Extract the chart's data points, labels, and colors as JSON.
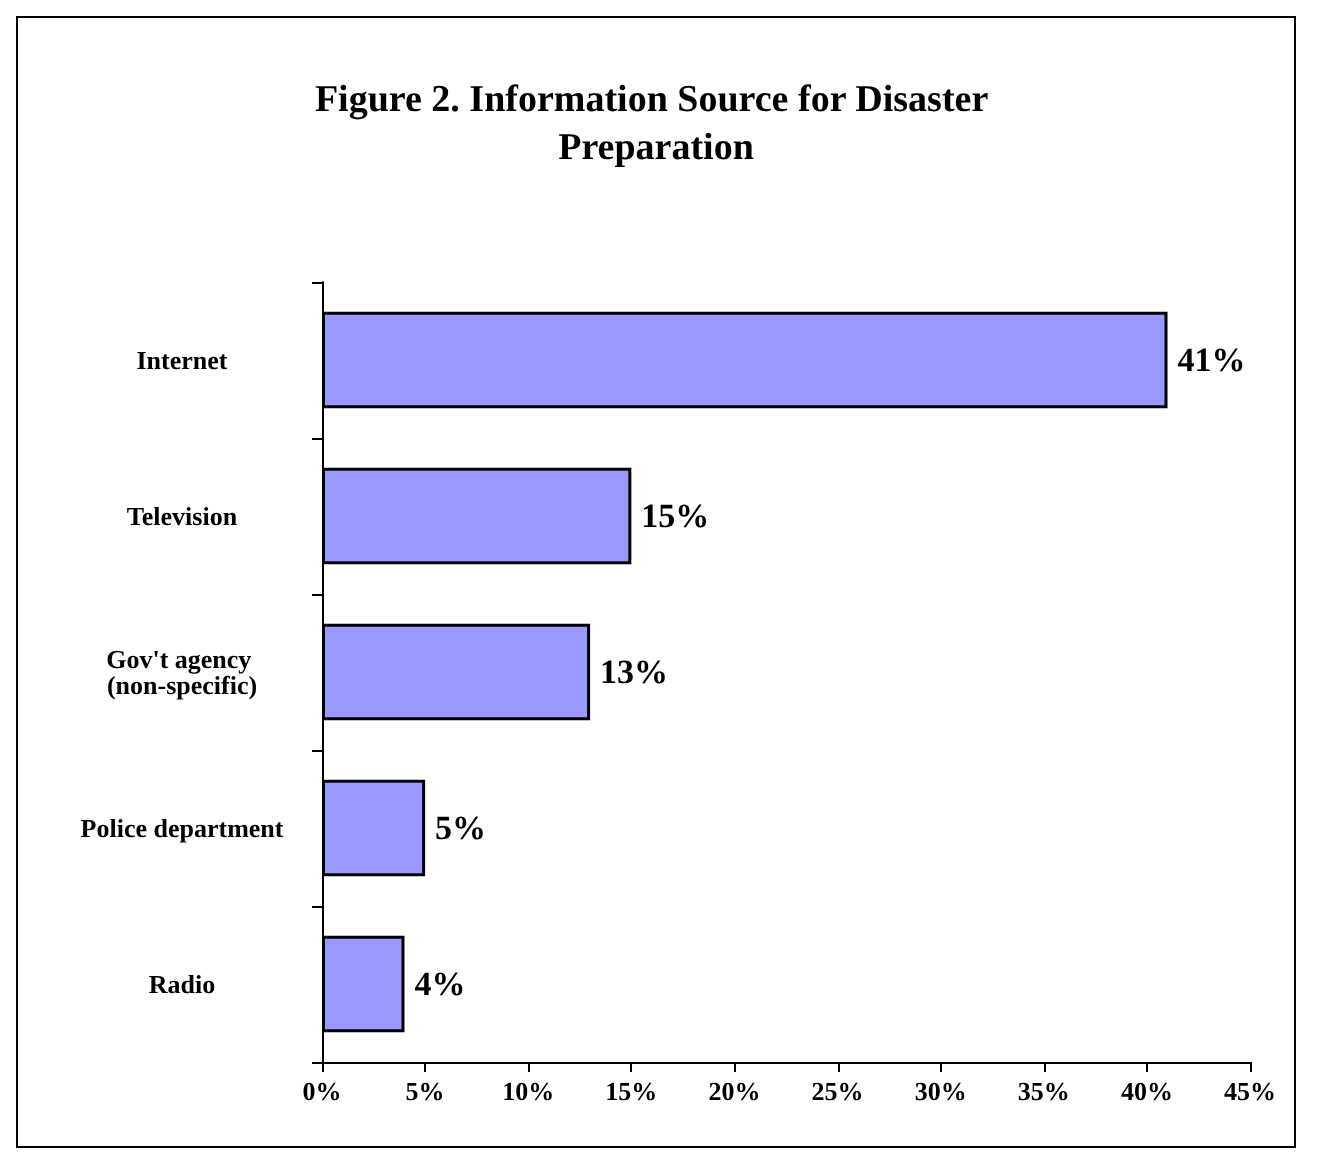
{
  "chart_data": {
    "type": "bar",
    "orientation": "horizontal",
    "title": "Figure 2. Information Source for Disaster Preparation",
    "categories": [
      "Internet",
      "Television",
      "Gov't agency (non-specific)",
      "Police department",
      "Radio"
    ],
    "values": [
      41,
      15,
      13,
      5,
      4
    ],
    "color": "#9999ff",
    "value_labels": [
      "41%",
      "15%",
      "13%",
      "5%",
      "4%"
    ],
    "xlim": [
      0,
      45
    ],
    "xticks": [
      {
        "value": 0,
        "label": "0%"
      },
      {
        "value": 5,
        "label": "5%"
      },
      {
        "value": 10,
        "label": "10%"
      },
      {
        "value": 15,
        "label": "15%"
      },
      {
        "value": 20,
        "label": "20%"
      },
      {
        "value": 25,
        "label": "25%"
      },
      {
        "value": 30,
        "label": "30%"
      },
      {
        "value": 35,
        "label": "35%"
      },
      {
        "value": 40,
        "label": "40%"
      },
      {
        "value": 45,
        "label": "45%"
      }
    ],
    "grid": false
  }
}
